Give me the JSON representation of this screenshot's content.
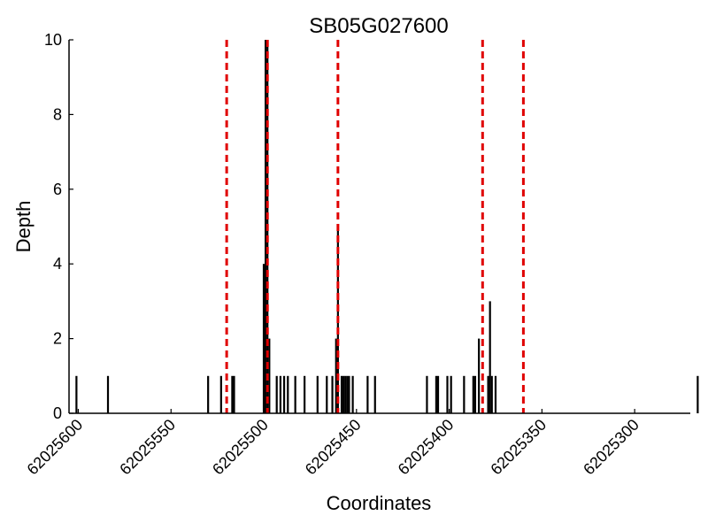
{
  "chart_data": {
    "type": "bar",
    "title": "SB05G027600",
    "xlabel": "Coordinates",
    "ylabel": "Depth",
    "x_inverted": true,
    "xlim": [
      62025605,
      62025270
    ],
    "ylim": [
      0,
      10
    ],
    "x_ticks": [
      62025600,
      62025550,
      62025500,
      62025450,
      62025400,
      62025350,
      62025300
    ],
    "x_tick_labels": [
      "62025600",
      "62025550",
      "62025500",
      "62025450",
      "62025400",
      "62025350",
      "62025300"
    ],
    "y_ticks": [
      0,
      2,
      4,
      6,
      8,
      10
    ],
    "y_tick_labels": [
      "0",
      "2",
      "4",
      "6",
      "8",
      "10"
    ],
    "grid": false,
    "bar_color": "#000000",
    "marker_color": "#e00000",
    "series": [
      {
        "x": [
          62025601,
          62025584,
          62025530,
          62025523,
          62025517,
          62025516,
          62025500,
          62025499,
          62025498,
          62025497,
          62025493,
          62025491,
          62025489,
          62025487,
          62025483,
          62025478,
          62025471,
          62025466,
          62025463,
          62025461,
          62025460,
          62025458,
          62025457,
          62025456,
          62025455,
          62025454,
          62025452,
          62025444,
          62025440,
          62025412,
          62025407,
          62025406,
          62025401,
          62025399,
          62025392,
          62025387,
          62025386,
          62025384,
          62025379,
          62025378,
          62025377,
          62025375,
          62025266
        ],
        "values": [
          1,
          1,
          1,
          1,
          1,
          1,
          4,
          10,
          10,
          2,
          1,
          1,
          1,
          1,
          1,
          1,
          1,
          1,
          1,
          2,
          5,
          1,
          1,
          1,
          1,
          1,
          1,
          1,
          1,
          1,
          1,
          1,
          1,
          1,
          1,
          1,
          1,
          2,
          1,
          3,
          1,
          1,
          1
        ]
      }
    ],
    "markers": [
      62025520,
      62025498,
      62025460,
      62025382,
      62025360
    ]
  }
}
